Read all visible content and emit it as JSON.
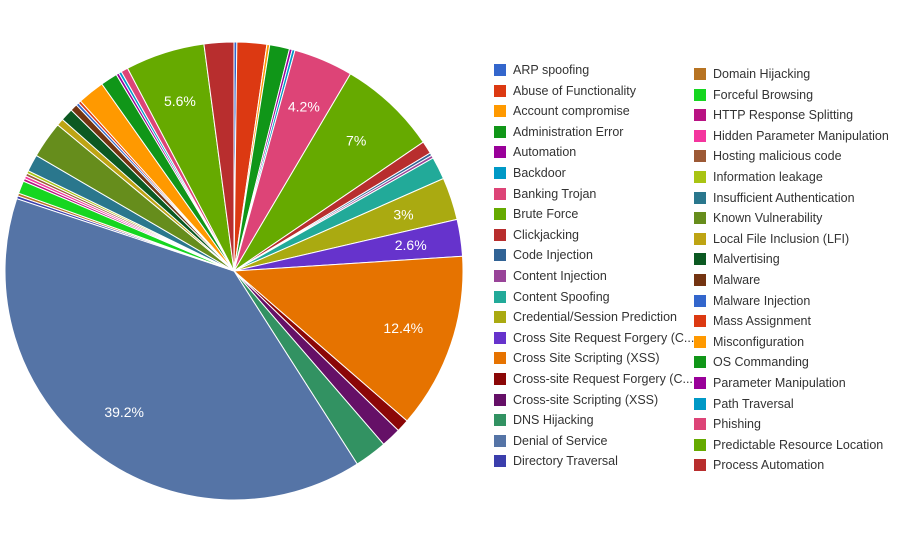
{
  "chart_data": {
    "type": "pie",
    "slices": [
      {
        "label": "ARP spoofing",
        "value": 0.2,
        "color": "#3366cc"
      },
      {
        "label": "Abuse of Functionality",
        "value": 2.1,
        "color": "#dc3912"
      },
      {
        "label": "Account compromise",
        "value": 0.2,
        "color": "#ff9900"
      },
      {
        "label": "Administration Error",
        "value": 1.4,
        "color": "#109618"
      },
      {
        "label": "Automation",
        "value": 0.2,
        "color": "#990099"
      },
      {
        "label": "Backdoor",
        "value": 0.2,
        "color": "#0099c6"
      },
      {
        "label": "Banking Trojan",
        "value": 4.2,
        "color": "#dd4477",
        "display": "4.2%"
      },
      {
        "label": "Brute Force",
        "value": 7.0,
        "color": "#66aa00",
        "display": "7%"
      },
      {
        "label": "Clickjacking",
        "value": 0.9,
        "color": "#b82e2e"
      },
      {
        "label": "Code Injection",
        "value": 0.2,
        "color": "#316395"
      },
      {
        "label": "Content Injection",
        "value": 0.2,
        "color": "#994499"
      },
      {
        "label": "Content Spoofing",
        "value": 1.6,
        "color": "#22aa99"
      },
      {
        "label": "Credential/Session Prediction",
        "value": 3.0,
        "color": "#aaaa11",
        "display": "3%"
      },
      {
        "label": "Cross Site Request Forgery (C...",
        "value": 2.6,
        "color": "#6633cc",
        "display": "2.6%"
      },
      {
        "label": "Cross Site Scripting (XSS)",
        "value": 12.4,
        "color": "#e67300",
        "display": "12.4%"
      },
      {
        "label": "Cross-site Request Forgery (C...",
        "value": 0.9,
        "color": "#8b0707"
      },
      {
        "label": "Cross-site Scripting (XSS)",
        "value": 1.4,
        "color": "#651067"
      },
      {
        "label": "DNS Hijacking",
        "value": 2.3,
        "color": "#329262"
      },
      {
        "label": "Denial of Service",
        "value": 39.2,
        "color": "#5574a6",
        "display": "39.2%"
      },
      {
        "label": "Directory Traversal",
        "value": 0.2,
        "color": "#3b3eac"
      },
      {
        "label": "Domain Hijacking",
        "value": 0.2,
        "color": "#b77322"
      },
      {
        "label": "Forceful Browsing",
        "value": 0.9,
        "color": "#16d620"
      },
      {
        "label": "HTTP Response Splitting",
        "value": 0.2,
        "color": "#b91383"
      },
      {
        "label": "Hidden Parameter Manipulation",
        "value": 0.2,
        "color": "#f4359e"
      },
      {
        "label": "Hosting malicious code",
        "value": 0.2,
        "color": "#9c5935"
      },
      {
        "label": "Information leakage",
        "value": 0.2,
        "color": "#a9c413"
      },
      {
        "label": "Insufficient Authentication",
        "value": 1.2,
        "color": "#2a778d"
      },
      {
        "label": "Known Vulnerability",
        "value": 2.6,
        "color": "#668d1c"
      },
      {
        "label": "Local File Inclusion (LFI)",
        "value": 0.5,
        "color": "#bea413"
      },
      {
        "label": "Malvertising",
        "value": 0.9,
        "color": "#0c5922"
      },
      {
        "label": "Malware",
        "value": 0.5,
        "color": "#743411"
      },
      {
        "label": "Malware Injection",
        "value": 0.2,
        "color": "#3366cc"
      },
      {
        "label": "Mass Assignment",
        "value": 0.2,
        "color": "#dc3912"
      },
      {
        "label": "Misconfiguration",
        "value": 1.9,
        "color": "#ff9900"
      },
      {
        "label": "OS Commanding",
        "value": 1.2,
        "color": "#109618"
      },
      {
        "label": "Parameter Manipulation",
        "value": 0.2,
        "color": "#990099"
      },
      {
        "label": "Path Traversal",
        "value": 0.2,
        "color": "#0099c6"
      },
      {
        "label": "Phishing",
        "value": 0.5,
        "color": "#dd4477"
      },
      {
        "label": "Predictable Resource Location",
        "value": 5.6,
        "color": "#66aa00",
        "display": "5.6%"
      },
      {
        "label": "Process Automation",
        "value": 2.1,
        "color": "#b82e2e"
      }
    ]
  }
}
